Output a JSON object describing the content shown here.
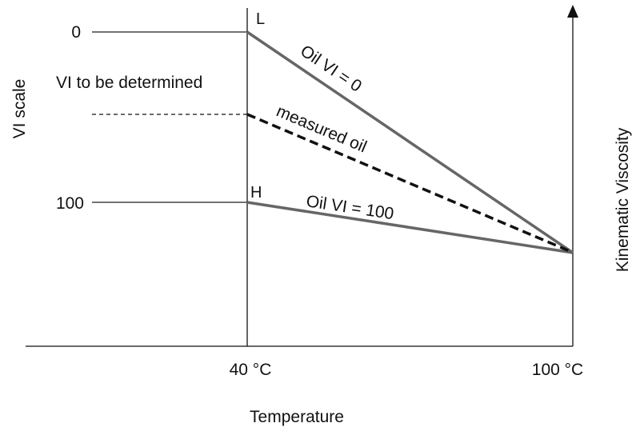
{
  "diagram": {
    "labels": {
      "vi_scale": "VI scale",
      "vi_0": "0",
      "vi_100": "100",
      "vi_to_be_determined": "VI to be determined",
      "point_L": "L",
      "point_H": "H",
      "line_oil_vi_0": "Oil VI = 0",
      "line_measured": "measured oil",
      "line_oil_vi_100": "Oil VI = 100",
      "kinematic_viscosity": "Kinematic Viscosity",
      "temp_40": "40 °C",
      "temp_100": "100 °C",
      "temperature": "Temperature"
    },
    "colors": {
      "reference_line": "#666666",
      "measured_line": "#111111",
      "axis": "#111111"
    }
  }
}
